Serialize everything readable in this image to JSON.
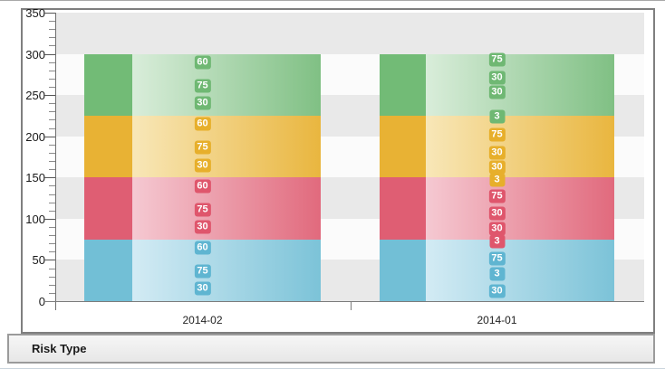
{
  "header": {
    "risk_panel_label": "Risk Type"
  },
  "chart_data": {
    "type": "bar",
    "stacked": true,
    "title": "",
    "xlabel": "",
    "ylabel": "",
    "ylim": [
      0,
      350
    ],
    "y_ticks": [
      "350",
      "300",
      "250",
      "200",
      "150",
      "100",
      "50",
      "0"
    ],
    "minor_tick_interval": 10,
    "major_tick_interval": 50,
    "grid_style": "alternating-horizontal-bands",
    "legend": "none",
    "categories": [
      "2014-02",
      "2014-01"
    ],
    "series_order_top_to_bottom": [
      "green",
      "yellow",
      "red",
      "blue"
    ],
    "segment_height_units": 75,
    "palette": {
      "green": {
        "solid": "#72bb76",
        "light": "#d9edda",
        "end": "#80c084",
        "chip": "#6fb873"
      },
      "yellow": {
        "solid": "#e8b234",
        "light": "#f8e7b8",
        "end": "#e9b63f",
        "chip": "#e7af2b"
      },
      "red": {
        "solid": "#df5e73",
        "light": "#f5c9d2",
        "end": "#e16a7d",
        "chip": "#df566c"
      },
      "blue": {
        "solid": "#72bfd6",
        "light": "#d3ebf4",
        "end": "#7cc3d8",
        "chip": "#5fb5d1"
      }
    },
    "stripe_colors": {
      "gray": "#e9e9e9",
      "white": "#fbfbfb"
    },
    "bars": [
      {
        "category": "2014-02",
        "bands": [
          {
            "series": "green",
            "height": 75,
            "labels": [
              {
                "value": "60",
                "pos": 14
              },
              {
                "value": "75",
                "pos": 52
              },
              {
                "value": "30",
                "pos": 80
              }
            ]
          },
          {
            "series": "yellow",
            "height": 75,
            "labels": [
              {
                "value": "60",
                "pos": 14
              },
              {
                "value": "75",
                "pos": 52
              },
              {
                "value": "30",
                "pos": 80
              }
            ]
          },
          {
            "series": "red",
            "height": 75,
            "labels": [
              {
                "value": "60",
                "pos": 14
              },
              {
                "value": "75",
                "pos": 52
              },
              {
                "value": "30",
                "pos": 80
              }
            ]
          },
          {
            "series": "blue",
            "height": 75,
            "labels": [
              {
                "value": "60",
                "pos": 14
              },
              {
                "value": "75",
                "pos": 52
              },
              {
                "value": "30",
                "pos": 80
              }
            ]
          }
        ]
      },
      {
        "category": "2014-01",
        "bands": [
          {
            "series": "green",
            "height": 75,
            "labels": [
              {
                "value": "75",
                "pos": 9
              },
              {
                "value": "30",
                "pos": 38
              },
              {
                "value": "30",
                "pos": 62
              },
              {
                "value": "3",
                "pos": 101
              }
            ]
          },
          {
            "series": "yellow",
            "height": 75,
            "labels": [
              {
                "value": "75",
                "pos": 31
              },
              {
                "value": "30",
                "pos": 60
              },
              {
                "value": "30",
                "pos": 83
              },
              {
                "value": "3",
                "pos": 104
              }
            ]
          },
          {
            "series": "red",
            "height": 75,
            "labels": [
              {
                "value": "75",
                "pos": 30
              },
              {
                "value": "30",
                "pos": 58
              },
              {
                "value": "30",
                "pos": 83
              },
              {
                "value": "3",
                "pos": 103
              }
            ]
          },
          {
            "series": "blue",
            "height": 75,
            "labels": [
              {
                "value": "75",
                "pos": 31
              },
              {
                "value": "3",
                "pos": 56
              },
              {
                "value": "30",
                "pos": 84
              }
            ]
          }
        ]
      }
    ]
  }
}
